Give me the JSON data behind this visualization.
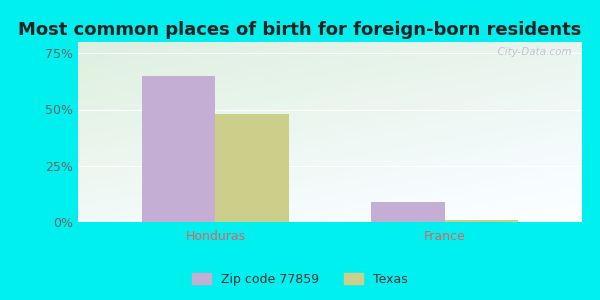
{
  "title": "Most common places of birth for foreign-born residents",
  "categories": [
    "Honduras",
    "France"
  ],
  "series": [
    {
      "label": "Zip code 77859",
      "color": "#c4aed4",
      "values": [
        65,
        9
      ]
    },
    {
      "label": "Texas",
      "color": "#cdd nineteen",
      "values": [
        48,
        1
      ]
    }
  ],
  "series2": [
    {
      "label": "Zip code 77859",
      "color": "#c4aed4",
      "values": [
        65,
        9
      ]
    },
    {
      "label": "Texas",
      "color": "#cccf8a",
      "values": [
        48,
        1
      ]
    }
  ],
  "yticks": [
    0,
    25,
    50,
    75
  ],
  "ytick_labels": [
    "0%",
    "25%",
    "50%",
    "75%"
  ],
  "ylim": [
    0,
    80
  ],
  "bar_width": 0.32,
  "bg_outer": "#00f0f0",
  "xlabel_color": "#e06060",
  "xtick_fontsize": 9,
  "ytick_fontsize": 9,
  "legend_fontsize": 9,
  "title_fontsize": 13,
  "watermark": "  City-Data.com"
}
